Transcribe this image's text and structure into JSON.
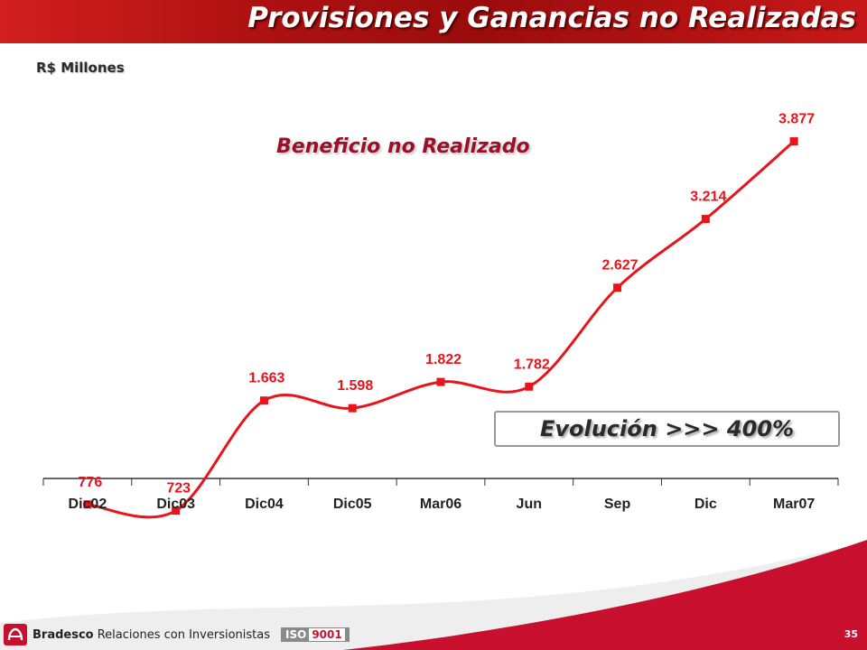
{
  "header": {
    "title": "Provisiones y Ganancias no Realizadas"
  },
  "subtitle": "R$ Millones",
  "chart_data": {
    "type": "line",
    "title": "Beneficio no Realizado",
    "categories": [
      "Dic02",
      "Dic03",
      "Dic04",
      "Dic05",
      "Mar06",
      "Jun",
      "Sep",
      "Dic",
      "Mar07"
    ],
    "values": [
      776,
      723,
      1663,
      1598,
      1822,
      1782,
      2627,
      3214,
      3877
    ],
    "value_labels": [
      "776",
      "723",
      "1.663",
      "1.598",
      "1.822",
      "1.782",
      "2.627",
      "3.214",
      "3.877"
    ],
    "series_color": "#e8141c",
    "label_color": "#e8141c",
    "grid": false,
    "legend": "none"
  },
  "evolution": {
    "label": "Evolución >>> 400%"
  },
  "footer": {
    "brand": "Bradesco",
    "text": "Relaciones  con Inversionistas",
    "iso_prefix": "ISO",
    "iso_number": "9001",
    "page_number": "35"
  },
  "colors": {
    "header_red": "#b01212",
    "accent": "#e8141c",
    "title_wine": "#9b1028"
  }
}
